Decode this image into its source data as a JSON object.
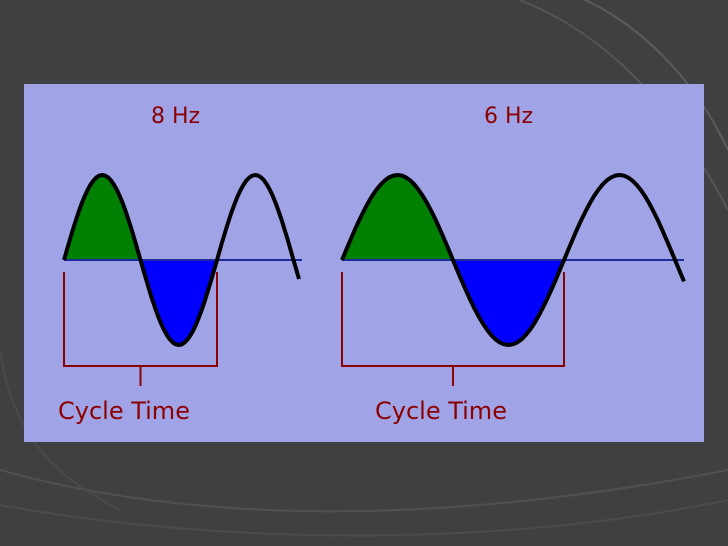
{
  "slide": {
    "background_color": "#404040",
    "panel_color": "#a0a4e6",
    "label_color": "#8b0000"
  },
  "waves": [
    {
      "frequency_label": "8 Hz",
      "cycle_label": "Cycle Time",
      "positive_fill": "#008000",
      "negative_fill": "#0000ff"
    },
    {
      "frequency_label": "6 Hz",
      "cycle_label": "Cycle Time",
      "positive_fill": "#008000",
      "negative_fill": "#0000ff"
    }
  ]
}
